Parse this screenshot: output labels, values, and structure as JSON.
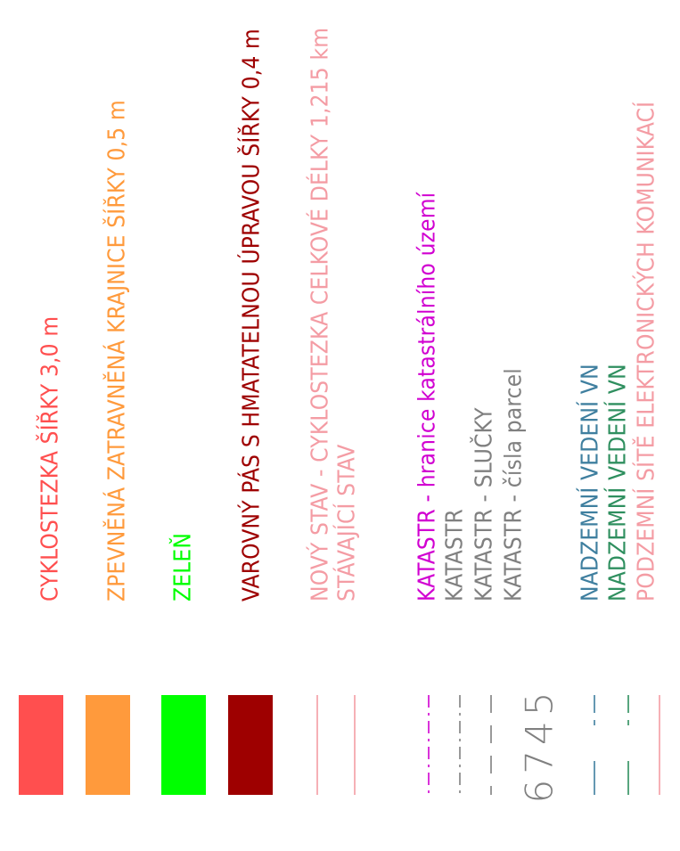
{
  "colors": {
    "red": "#ff4f4f",
    "orange": "#ff9a3c",
    "green": "#00ff00",
    "dark_red": "#9e0000",
    "pink": "#f49ca4",
    "magenta": "#d100d1",
    "gray": "#808080",
    "teal": "#3f7f9f",
    "dark_green": "#2f8f5f"
  },
  "items": [
    {
      "id": "cyklostezka",
      "label": "CYKLOSTEZKA ŠÍŘKY 3,0 m",
      "color": "#ff4f4f",
      "symbol": "fill"
    },
    {
      "id": "krajnice",
      "label": "ZPEVNĚNÁ ZATRAVNĚNÁ KRAJNICE ŠÍŘKY 0,5 m",
      "color": "#ff9a3c",
      "symbol": "fill"
    },
    {
      "id": "zelen",
      "label": "ZELEŇ",
      "color": "#00ff00",
      "symbol": "fill"
    },
    {
      "id": "varovny-pas",
      "label": "VAROVNÝ PÁS S HMATATELNOU ÚPRAVOU ŠÍŘKY 0,4 m",
      "color": "#9e0000",
      "symbol": "fill"
    },
    {
      "id": "novy-stav",
      "label": "NOVÝ STAV - CYKLOSTEZKA CELKOVÉ DÉLKY 1,215 km",
      "color": "#f49ca4",
      "symbol": "line-solid"
    },
    {
      "id": "stavajici-stav",
      "label": "STÁVAJÍCÍ STAV",
      "color": "#f49ca4",
      "symbol": "line-solid"
    },
    {
      "id": "katastr-hranice",
      "label": "KATASTR - hranice katastrálního území",
      "color": "#d100d1",
      "symbol": "line-dashdot"
    },
    {
      "id": "katastr",
      "label": "KATASTR",
      "color": "#808080",
      "symbol": "line-dashdot"
    },
    {
      "id": "katastr-slucky",
      "label": "KATASTR - SLUČKY",
      "color": "#808080",
      "symbol": "line-dashed"
    },
    {
      "id": "katastr-cisla",
      "label": "KATASTR - čísla parcel",
      "color": "#808080",
      "symbol": "number",
      "number": "6745"
    },
    {
      "id": "vn-1",
      "label": "NADZEMNÍ VEDENÍ VN",
      "color": "#3f7f9f",
      "symbol": "line-gapped"
    },
    {
      "id": "vn-2",
      "label": "NADZEMNÍ VEDENÍ VN",
      "color": "#2f8f5f",
      "symbol": "line-gapped"
    },
    {
      "id": "podzemni",
      "label": "PODZEMNÍ SÍTĚ ELEKTRONICKÝCH KOMUNIKACÍ",
      "color": "#f49ca4",
      "symbol": "line-solid"
    }
  ]
}
